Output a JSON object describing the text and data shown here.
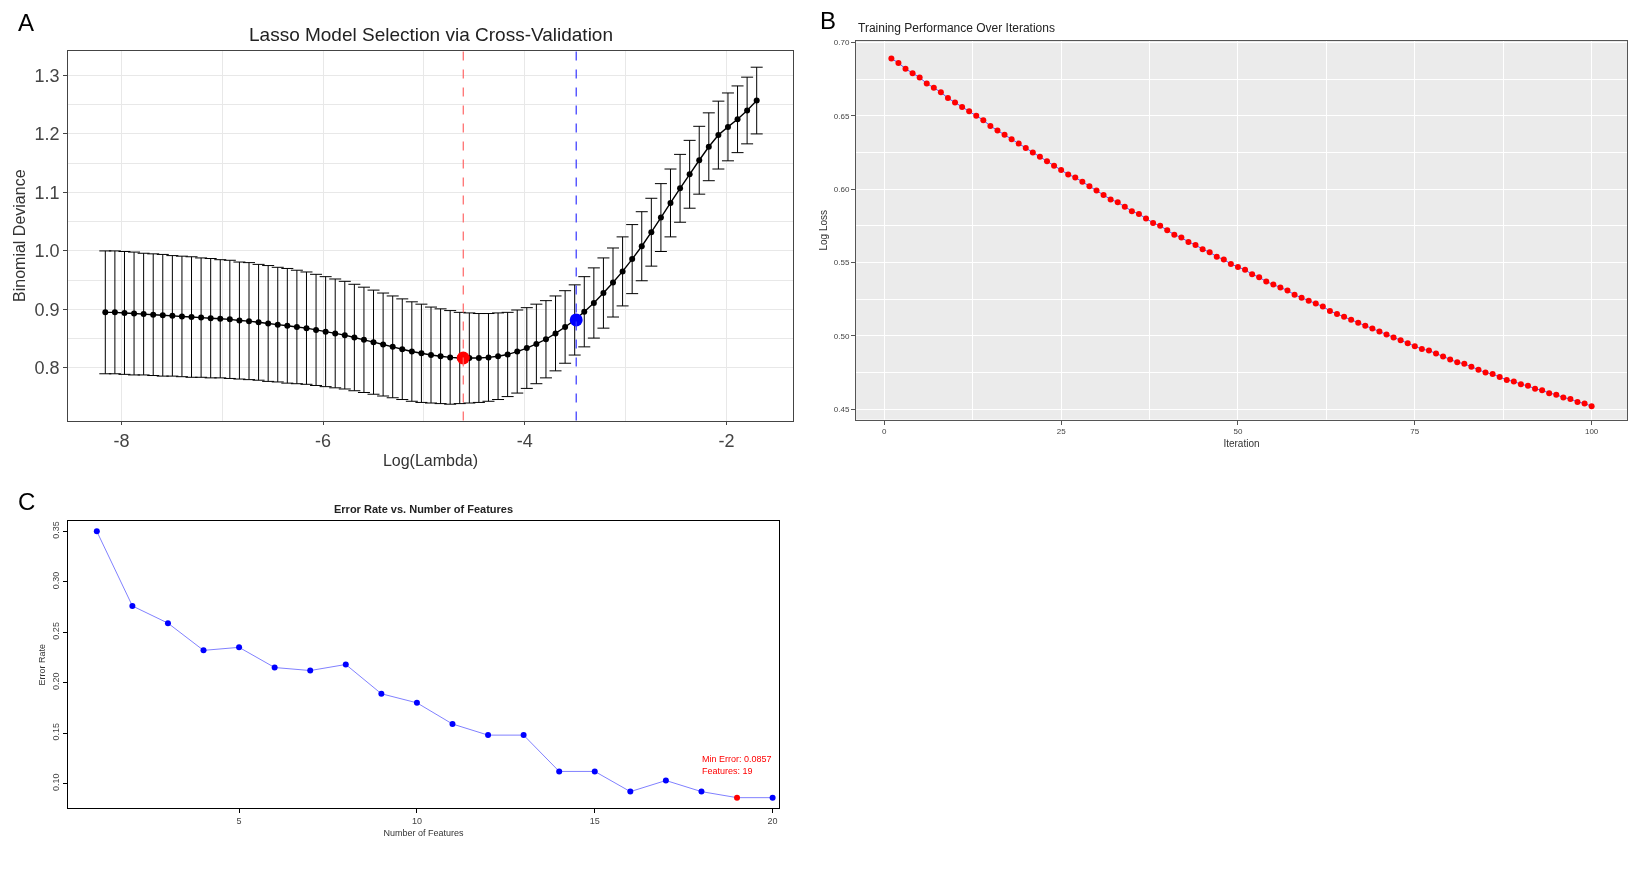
{
  "chart_data": [
    {
      "type": "line",
      "title": "Lasso Model Selection via Cross-Validation",
      "xlabel": "Log(Lambda)",
      "ylabel": "Binomial Deviance",
      "annotations": [
        "A"
      ],
      "series": [
        {
          "color": "#000000",
          "x": [
            -8.16,
            -8.065,
            -7.97,
            -7.875,
            -7.78,
            -7.685,
            -7.59,
            -7.495,
            -7.4,
            -7.305,
            -7.21,
            -7.115,
            -7.02,
            -6.925,
            -6.83,
            -6.735,
            -6.64,
            -6.545,
            -6.45,
            -6.355,
            -6.26,
            -6.165,
            -6.07,
            -5.975,
            -5.88,
            -5.785,
            -5.69,
            -5.595,
            -5.5,
            -5.405,
            -5.31,
            -5.215,
            -5.12,
            -5.025,
            -4.93,
            -4.835,
            -4.74,
            -4.645,
            -4.55,
            -4.455,
            -4.36,
            -4.265,
            -4.17,
            -4.075,
            -3.98,
            -3.885,
            -3.79,
            -3.695,
            -3.6,
            -3.505,
            -3.41,
            -3.315,
            -3.22,
            -3.125,
            -3.03,
            -2.935,
            -2.84,
            -2.745,
            -2.65,
            -2.555,
            -2.46,
            -2.365,
            -2.27,
            -2.175,
            -2.08,
            -1.985,
            -1.89,
            -1.795,
            -1.7
          ],
          "values": [
            0.895,
            0.895,
            0.894,
            0.893,
            0.892,
            0.891,
            0.89,
            0.889,
            0.888,
            0.887,
            0.886,
            0.885,
            0.884,
            0.883,
            0.881,
            0.88,
            0.878,
            0.876,
            0.874,
            0.872,
            0.87,
            0.868,
            0.865,
            0.862,
            0.859,
            0.856,
            0.852,
            0.848,
            0.844,
            0.84,
            0.836,
            0.832,
            0.828,
            0.825,
            0.822,
            0.82,
            0.818,
            0.817,
            0.817,
            0.817,
            0.818,
            0.82,
            0.823,
            0.828,
            0.834,
            0.841,
            0.849,
            0.859,
            0.87,
            0.882,
            0.896,
            0.911,
            0.928,
            0.946,
            0.965,
            0.986,
            1.008,
            1.032,
            1.057,
            1.082,
            1.107,
            1.131,
            1.155,
            1.178,
            1.198,
            1.212,
            1.225,
            1.24,
            1.257
          ],
          "errors": [
            0.105,
            0.105,
            0.105,
            0.105,
            0.104,
            0.104,
            0.104,
            0.103,
            0.103,
            0.103,
            0.102,
            0.102,
            0.101,
            0.101,
            0.1,
            0.1,
            0.099,
            0.099,
            0.098,
            0.098,
            0.097,
            0.096,
            0.095,
            0.094,
            0.093,
            0.092,
            0.091,
            0.09,
            0.089,
            0.088,
            0.087,
            0.086,
            0.085,
            0.084,
            0.082,
            0.081,
            0.08,
            0.078,
            0.077,
            0.076,
            0.075,
            0.074,
            0.072,
            0.071,
            0.069,
            0.068,
            0.066,
            0.064,
            0.062,
            0.06,
            0.06,
            0.06,
            0.06,
            0.059,
            0.059,
            0.059,
            0.059,
            0.058,
            0.058,
            0.058,
            0.058,
            0.058,
            0.058,
            0.058,
            0.058,
            0.058,
            0.057,
            0.057,
            0.057
          ]
        },
        {
          "type": "scatter",
          "color": "#ff0000",
          "x": [
            -4.61
          ],
          "values": [
            0.817
          ]
        },
        {
          "type": "scatter",
          "color": "#0000ff",
          "x": [
            -3.49
          ],
          "values": [
            0.882
          ]
        }
      ],
      "ref_lines": [
        {
          "axis": "x",
          "value": -4.61,
          "color": "#ff6666",
          "line_style": "dashed"
        },
        {
          "axis": "x",
          "value": -3.49,
          "color": "#3333ff",
          "line_style": "dashed"
        }
      ],
      "xlim": [
        -8.53,
        -1.34
      ],
      "ylim": [
        0.71,
        1.342
      ],
      "xticks": [
        -8,
        -6,
        -4,
        -2
      ],
      "yticks": [
        0.8,
        0.9,
        {
          "value": 1,
          "label": "1.0"
        },
        1.1,
        1.2,
        1.3
      ],
      "grid": true,
      "marker": "circle"
    },
    {
      "type": "line",
      "title": "Training Performance Over Iterations",
      "xlabel": "Iteration",
      "ylabel": "Log Loss",
      "annotations": [
        "B"
      ],
      "series": [
        {
          "color": "#5050ff",
          "colors": [
            "#ff0000",
            "#ff0000",
            "#ff0000",
            "#ff0000",
            "#ff0000",
            "#ff0000",
            "#ff0000",
            "#ff0000",
            "#ff0000",
            "#ff0000",
            "#ff0000",
            "#ff0000",
            "#ff0000",
            "#ff0000",
            "#ff0000",
            "#ff0000",
            "#ff0000",
            "#ff0000",
            "#ff0000",
            "#ff0000",
            "#ff0000",
            "#ff0000",
            "#ff0000",
            "#ff0000",
            "#ff0000",
            "#ff0000",
            "#ff0000",
            "#ff0000",
            "#ff0000",
            "#ff0000",
            "#ff0000",
            "#ff0000",
            "#ff0000",
            "#ff0000",
            "#ff0000",
            "#ff0000",
            "#ff0000",
            "#ff0000",
            "#ff0000",
            "#ff0000",
            "#ff0000",
            "#ff0000",
            "#ff0000",
            "#ff0000",
            "#ff0000",
            "#ff0000",
            "#ff0000",
            "#ff0000",
            "#ff0000",
            "#ff0000",
            "#ff0000",
            "#ff0000",
            "#ff0000",
            "#ff0000",
            "#ff0000",
            "#ff0000",
            "#ff0000",
            "#ff0000",
            "#ff0000",
            "#ff0000",
            "#ff0000",
            "#ff0000",
            "#ff0000",
            "#ff0000",
            "#ff0000",
            "#ff0000",
            "#ff0000",
            "#ff0000",
            "#ff0000",
            "#ff0000",
            "#ff0000",
            "#ff0000",
            "#ff0000",
            "#ff0000",
            "#ff0000",
            "#ff0000",
            "#ff0000",
            "#ff0000",
            "#ff0000",
            "#ff0000",
            "#ff0000",
            "#ff0000",
            "#ff0000",
            "#ff0000",
            "#ff0000",
            "#ff0000",
            "#ff0000",
            "#ff0000",
            "#ff0000",
            "#ff0000",
            "#ff0000",
            "#ff0000",
            "#ff0000",
            "#ff0000",
            "#ff0000",
            "#ff0000",
            "#ff0000",
            "#ff0000",
            "#ff0000",
            "#ff0000"
          ],
          "x": [
            1,
            2,
            3,
            4,
            5,
            6,
            7,
            8,
            9,
            10,
            11,
            12,
            13,
            14,
            15,
            16,
            17,
            18,
            19,
            20,
            21,
            22,
            23,
            24,
            25,
            26,
            27,
            28,
            29,
            30,
            31,
            32,
            33,
            34,
            35,
            36,
            37,
            38,
            39,
            40,
            41,
            42,
            43,
            44,
            45,
            46,
            47,
            48,
            49,
            50,
            51,
            52,
            53,
            54,
            55,
            56,
            57,
            58,
            59,
            60,
            61,
            62,
            63,
            64,
            65,
            66,
            67,
            68,
            69,
            70,
            71,
            72,
            73,
            74,
            75,
            76,
            77,
            78,
            79,
            80,
            81,
            82,
            83,
            84,
            85,
            86,
            87,
            88,
            89,
            90,
            91,
            92,
            93,
            94,
            95,
            96,
            97,
            98,
            99,
            100
          ],
          "values": [
            0.689,
            0.686,
            0.682,
            0.679,
            0.676,
            0.672,
            0.669,
            0.666,
            0.662,
            0.659,
            0.656,
            0.653,
            0.65,
            0.647,
            0.643,
            0.64,
            0.637,
            0.634,
            0.631,
            0.628,
            0.625,
            0.622,
            0.619,
            0.616,
            0.613,
            0.61,
            0.608,
            0.605,
            0.602,
            0.599,
            0.596,
            0.593,
            0.591,
            0.588,
            0.585,
            0.583,
            0.58,
            0.577,
            0.575,
            0.572,
            0.569,
            0.567,
            0.564,
            0.562,
            0.559,
            0.557,
            0.554,
            0.552,
            0.549,
            0.547,
            0.545,
            0.542,
            0.54,
            0.537,
            0.535,
            0.533,
            0.531,
            0.528,
            0.526,
            0.524,
            0.522,
            0.52,
            0.517,
            0.515,
            0.513,
            0.511,
            0.509,
            0.507,
            0.505,
            0.503,
            0.501,
            0.499,
            0.497,
            0.495,
            0.493,
            0.491,
            0.49,
            0.488,
            0.486,
            0.484,
            0.482,
            0.481,
            0.479,
            0.477,
            0.475,
            0.474,
            0.472,
            0.47,
            0.469,
            0.467,
            0.466,
            0.464,
            0.463,
            0.461,
            0.46,
            0.458,
            0.457,
            0.455,
            0.454,
            0.452
          ]
        }
      ],
      "xlim": [
        -4,
        105
      ],
      "ylim": [
        0.443,
        0.701
      ],
      "xticks": [
        0,
        25,
        50,
        75,
        100
      ],
      "yticks": [
        0.45,
        {
          "value": 0.5,
          "label": "0.50"
        },
        0.55,
        {
          "value": 0.6,
          "label": "0.60"
        },
        0.65,
        {
          "value": 0.7,
          "label": "0.70"
        }
      ],
      "grid": true,
      "marker": "circle"
    },
    {
      "type": "line",
      "title": "Error Rate vs. Number of Features",
      "xlabel": "Number of Features",
      "ylabel": "Error Rate",
      "annotations": [
        "C",
        {
          "text": "Min Error: 0.0857\nFeatures: 19",
          "x": 19,
          "y": 0.086
        }
      ],
      "series": [
        {
          "color": "#8080ff",
          "colors": [
            "#0000ff",
            "#0000ff",
            "#0000ff",
            "#0000ff",
            "#0000ff",
            "#0000ff",
            "#0000ff",
            "#0000ff",
            "#0000ff",
            "#0000ff",
            "#0000ff",
            "#0000ff",
            "#0000ff",
            "#0000ff",
            "#0000ff",
            "#0000ff",
            "#0000ff",
            "#0000ff",
            "#ff0000",
            "#0000ff"
          ],
          "x": [
            1,
            2,
            3,
            4,
            5,
            6,
            7,
            8,
            9,
            10,
            11,
            12,
            13,
            14,
            15,
            16,
            17,
            18,
            19,
            20
          ],
          "values": [
            0.35,
            0.276,
            0.259,
            0.232,
            0.235,
            0.215,
            0.212,
            0.218,
            0.189,
            0.18,
            0.159,
            0.148,
            0.148,
            0.112,
            0.112,
            0.092,
            0.103,
            0.092,
            0.086,
            0.086
          ]
        }
      ],
      "xlim": [
        0.19,
        20.18
      ],
      "ylim": [
        0.0755,
        0.36
      ],
      "xticks": [
        5,
        10,
        15,
        20
      ],
      "yticks": [
        {
          "value": 0.1,
          "label": "0.10"
        },
        0.15,
        {
          "value": 0.2,
          "label": "0.20"
        },
        0.25,
        {
          "value": 0.3,
          "label": "0.30"
        },
        0.35
      ],
      "grid": false,
      "marker": "circle"
    }
  ]
}
